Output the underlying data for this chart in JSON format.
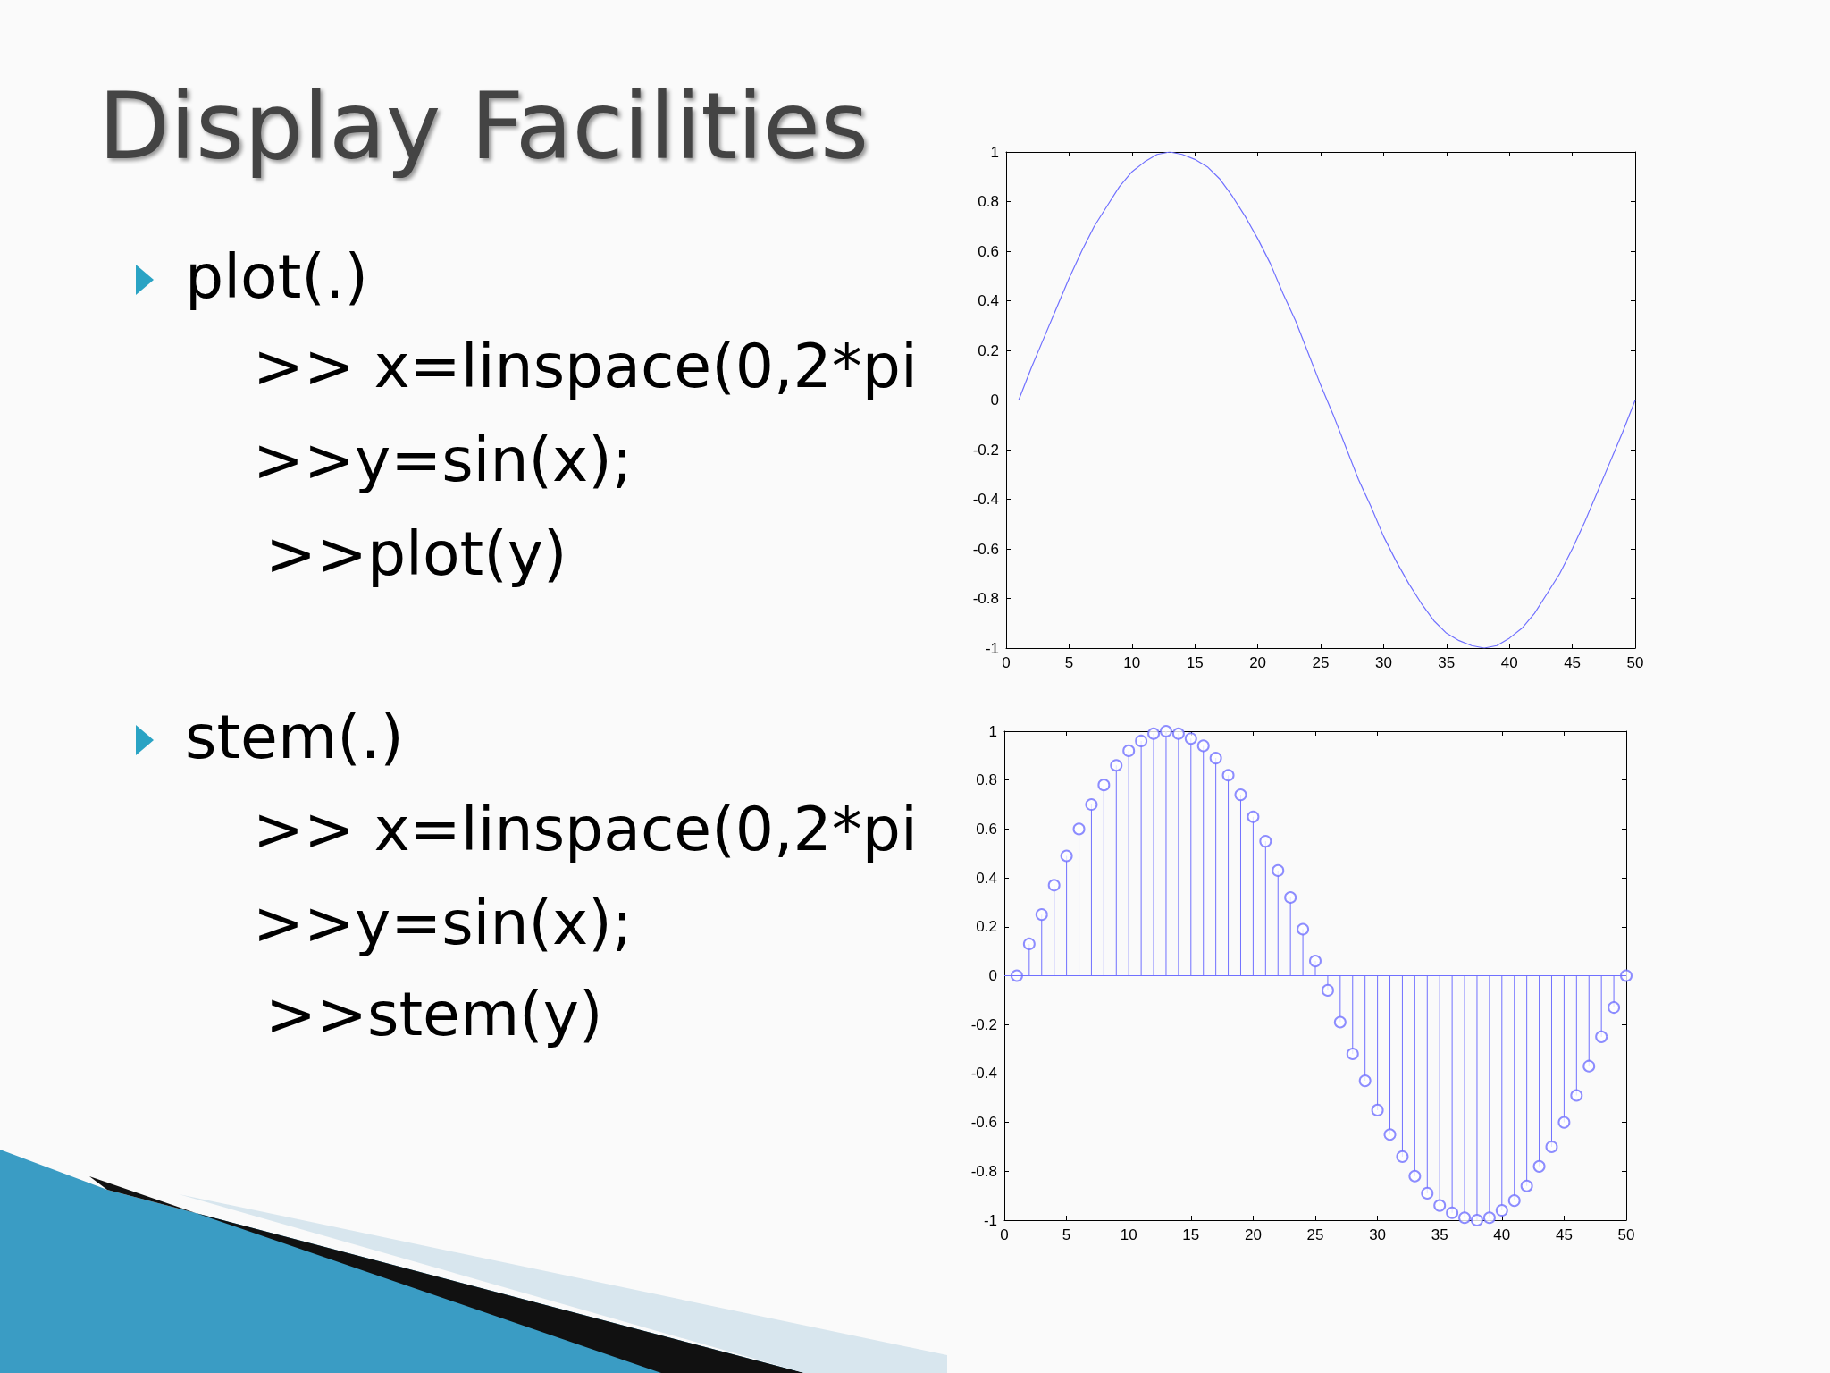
{
  "chart_data": [
    {
      "type": "other",
      "title": "Display Facilities",
      "annotations": [
        "plot(.)",
        ">> x=linspace(0,2*pi",
        ">>y=sin(x);",
        ">>plot(y)",
        "stem(.)",
        ">> x=linspace(0,2*pi",
        ">>y=sin(x);",
        ">>stem(y)"
      ]
    },
    {
      "type": "line",
      "x": [
        1,
        2,
        3,
        4,
        5,
        6,
        7,
        8,
        9,
        10,
        11,
        12,
        13,
        14,
        15,
        16,
        17,
        18,
        19,
        20,
        21,
        22,
        23,
        24,
        25,
        26,
        27,
        28,
        29,
        30,
        31,
        32,
        33,
        34,
        35,
        36,
        37,
        38,
        39,
        40,
        41,
        42,
        43,
        44,
        45,
        46,
        47,
        48,
        49,
        50
      ],
      "series": [
        {
          "color": "#7070ff",
          "values": [
            0,
            0.13,
            0.25,
            0.37,
            0.49,
            0.6,
            0.7,
            0.78,
            0.86,
            0.92,
            0.96,
            0.99,
            1,
            0.99,
            0.97,
            0.94,
            0.89,
            0.82,
            0.74,
            0.65,
            0.55,
            0.43,
            0.32,
            0.19,
            0.06,
            -0.06,
            -0.19,
            -0.32,
            -0.43,
            -0.55,
            -0.65,
            -0.74,
            -0.82,
            -0.89,
            -0.94,
            -0.97,
            -0.99,
            -1,
            -0.99,
            -0.96,
            -0.92,
            -0.86,
            -0.78,
            -0.7,
            -0.6,
            -0.49,
            -0.37,
            -0.25,
            -0.13,
            0
          ]
        }
      ],
      "xlim": [
        0,
        50
      ],
      "xticks": [
        0,
        5,
        10,
        15,
        20,
        25,
        30,
        35,
        40,
        45,
        50
      ],
      "ylim": [
        -1,
        1
      ],
      "yticks": [
        -1,
        -0.8,
        -0.6,
        -0.4,
        -0.2,
        0,
        0.2,
        0.4,
        0.6,
        0.8,
        1
      ],
      "grid": false,
      "marker": "none"
    },
    {
      "type": "lollipop",
      "x": [
        1,
        2,
        3,
        4,
        5,
        6,
        7,
        8,
        9,
        10,
        11,
        12,
        13,
        14,
        15,
        16,
        17,
        18,
        19,
        20,
        21,
        22,
        23,
        24,
        25,
        26,
        27,
        28,
        29,
        30,
        31,
        32,
        33,
        34,
        35,
        36,
        37,
        38,
        39,
        40,
        41,
        42,
        43,
        44,
        45,
        46,
        47,
        48,
        49,
        50
      ],
      "series": [
        {
          "color": "#7070ff",
          "values": [
            0,
            0.13,
            0.25,
            0.37,
            0.49,
            0.6,
            0.7,
            0.78,
            0.86,
            0.92,
            0.96,
            0.99,
            1,
            0.99,
            0.97,
            0.94,
            0.89,
            0.82,
            0.74,
            0.65,
            0.55,
            0.43,
            0.32,
            0.19,
            0.06,
            -0.06,
            -0.19,
            -0.32,
            -0.43,
            -0.55,
            -0.65,
            -0.74,
            -0.82,
            -0.89,
            -0.94,
            -0.97,
            -0.99,
            -1,
            -0.99,
            -0.96,
            -0.92,
            -0.86,
            -0.78,
            -0.7,
            -0.6,
            -0.49,
            -0.37,
            -0.25,
            -0.13,
            0
          ]
        }
      ],
      "xlim": [
        0,
        50
      ],
      "xticks": [
        0,
        5,
        10,
        15,
        20,
        25,
        30,
        35,
        40,
        45,
        50
      ],
      "ylim": [
        -1,
        1
      ],
      "yticks": [
        -1,
        -0.8,
        -0.6,
        -0.4,
        -0.2,
        0,
        0.2,
        0.4,
        0.6,
        0.8,
        1
      ],
      "grid": false,
      "marker": "circle",
      "ref_lines": [
        {
          "axis": "y",
          "value": 0,
          "color": "#7070ff"
        }
      ]
    }
  ]
}
